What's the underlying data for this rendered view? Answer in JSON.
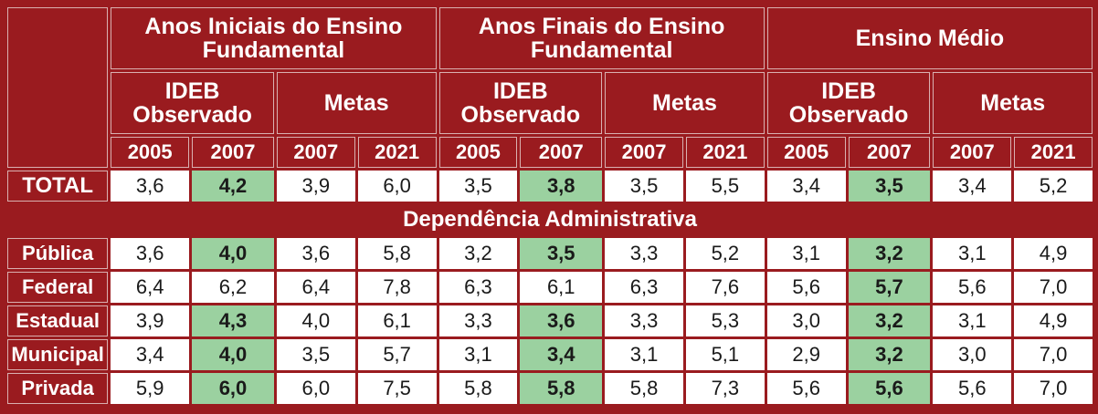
{
  "groups": [
    {
      "title": "Anos Iniciais do Ensino Fundamental",
      "title_l1": "Anos Iniciais do Ensino",
      "title_l2": "Fundamental"
    },
    {
      "title": "Anos Finais do Ensino Fundamental",
      "title_l1": "Anos Finais do Ensino",
      "title_l2": "Fundamental"
    },
    {
      "title": "Ensino Médio",
      "title_l1": "Ensino Médio",
      "title_l2": ""
    }
  ],
  "subheaders": {
    "ideb_l1": "IDEB",
    "ideb_l2": "Observado",
    "metas": "Metas"
  },
  "years": [
    "2005",
    "2007",
    "2007",
    "2021",
    "2005",
    "2007",
    "2007",
    "2021",
    "2005",
    "2007",
    "2007",
    "2021"
  ],
  "total": {
    "label": "TOTAL",
    "values": [
      "3,6",
      "4,2",
      "3,9",
      "6,0",
      "3,5",
      "3,8",
      "3,5",
      "5,5",
      "3,4",
      "3,5",
      "3,4",
      "5,2"
    ]
  },
  "section_title": "Dependência Administrativa",
  "rows": [
    {
      "label": "Pública",
      "values": [
        "3,6",
        "4,0",
        "3,6",
        "5,8",
        "3,2",
        "3,5",
        "3,3",
        "5,2",
        "3,1",
        "3,2",
        "3,1",
        "4,9"
      ],
      "highlight": [
        1,
        5,
        9
      ]
    },
    {
      "label": "Federal",
      "values": [
        "6,4",
        "6,2",
        "6,4",
        "7,8",
        "6,3",
        "6,1",
        "6,3",
        "7,6",
        "5,6",
        "5,7",
        "5,6",
        "7,0"
      ],
      "highlight": [
        9
      ]
    },
    {
      "label": "Estadual",
      "values": [
        "3,9",
        "4,3",
        "4,0",
        "6,1",
        "3,3",
        "3,6",
        "3,3",
        "5,3",
        "3,0",
        "3,2",
        "3,1",
        "4,9"
      ],
      "highlight": [
        1,
        5,
        9
      ]
    },
    {
      "label": "Municipal",
      "values": [
        "3,4",
        "4,0",
        "3,5",
        "5,7",
        "3,1",
        "3,4",
        "3,1",
        "5,1",
        "2,9",
        "3,2",
        "3,0",
        "7,0"
      ],
      "highlight": [
        1,
        5,
        9
      ]
    },
    {
      "label": "Privada",
      "values": [
        "5,9",
        "6,0",
        "6,0",
        "7,5",
        "5,8",
        "5,8",
        "5,8",
        "7,3",
        "5,6",
        "5,6",
        "5,6",
        "7,0"
      ],
      "highlight": [
        1,
        5,
        9
      ]
    }
  ],
  "total_highlight": [
    1,
    5,
    9
  ],
  "colors": {
    "header_bg": "#9a1b1f",
    "highlight_bg": "#9bd1a0",
    "cell_bg": "#ffffff"
  }
}
